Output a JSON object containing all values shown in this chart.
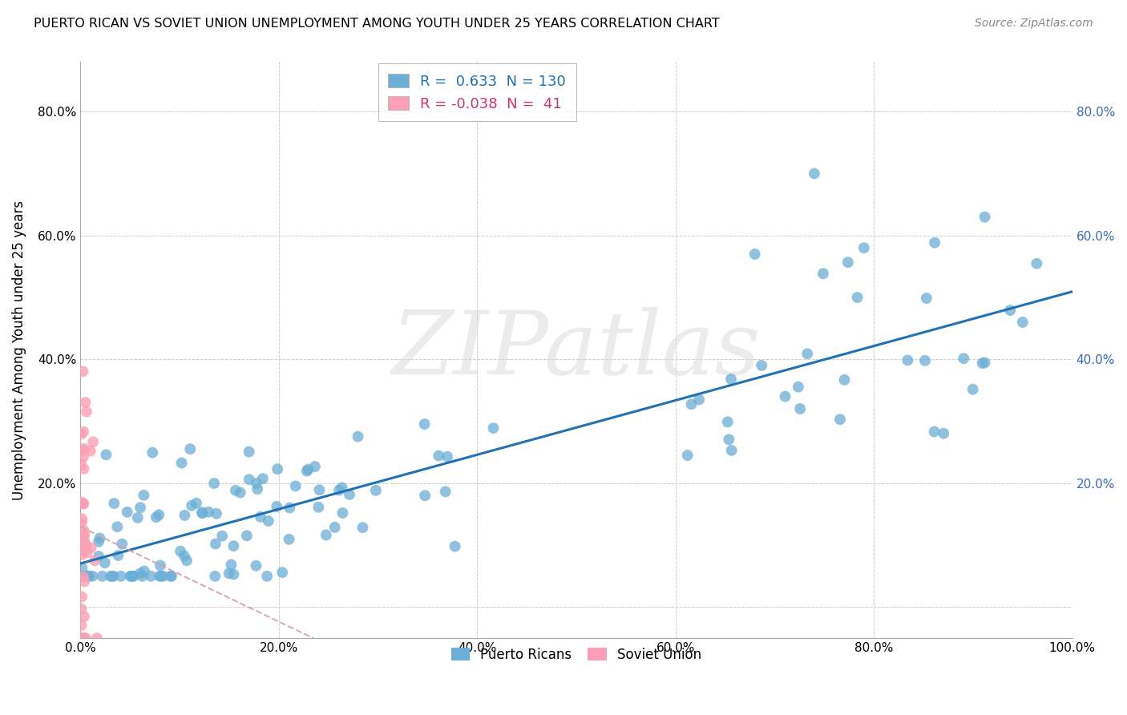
{
  "title": "PUERTO RICAN VS SOVIET UNION UNEMPLOYMENT AMONG YOUTH UNDER 25 YEARS CORRELATION CHART",
  "source": "Source: ZipAtlas.com",
  "ylabel": "Unemployment Among Youth under 25 years",
  "watermark": "ZIPatlas",
  "xlim": [
    0,
    1.0
  ],
  "ylim": [
    -0.05,
    0.88
  ],
  "xtick_labels": [
    "0.0%",
    "20.0%",
    "40.0%",
    "60.0%",
    "80.0%",
    "100.0%"
  ],
  "ytick_labels": [
    "",
    "20.0%",
    "40.0%",
    "60.0%",
    "80.0%"
  ],
  "blue_color": "#6baed6",
  "pink_color": "#fa9fb5",
  "trend_blue": "#2171b5",
  "trend_pink_color": "#d4a0b0",
  "legend_r_blue": "0.633",
  "legend_n_blue": "130",
  "legend_r_pink": "-0.038",
  "legend_n_pink": "41",
  "background_color": "#ffffff",
  "grid_color": "#cccccc",
  "right_axis_color": "#3a6ab5"
}
